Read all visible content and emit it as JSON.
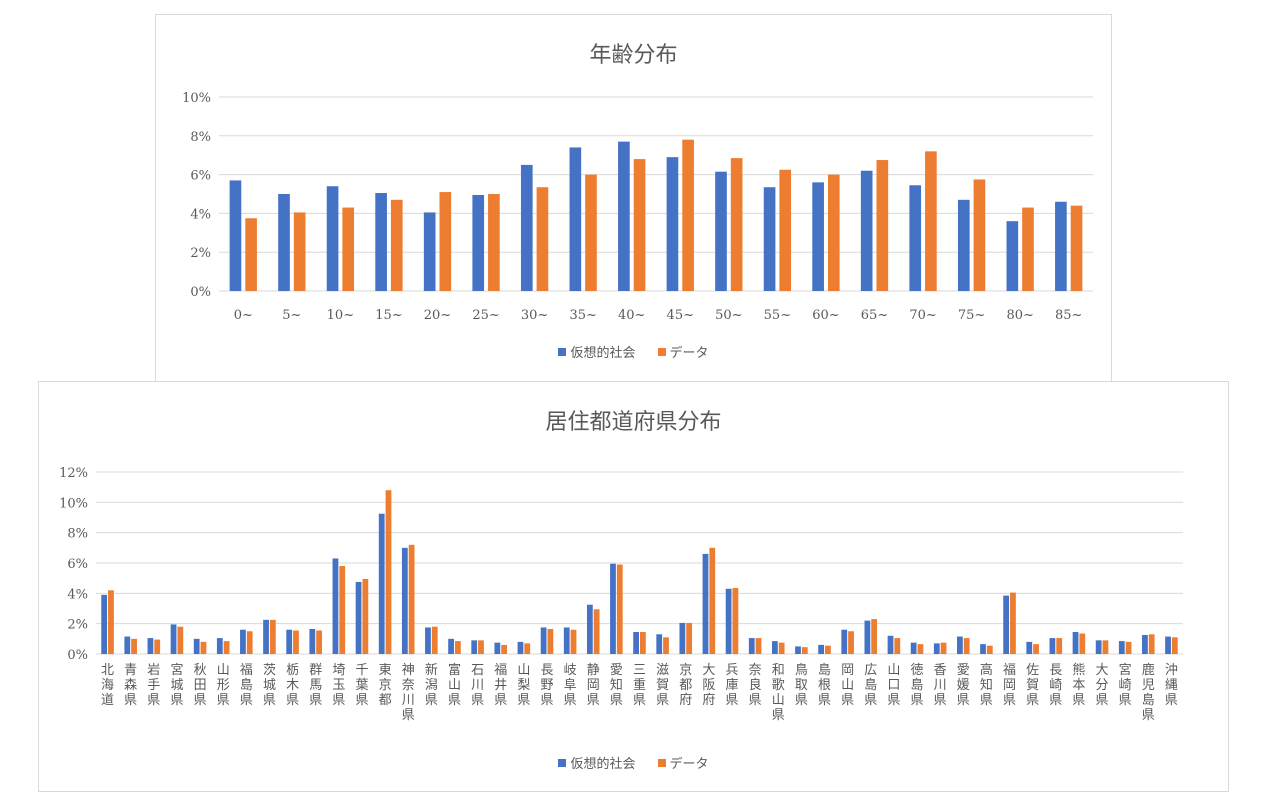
{
  "colors": {
    "series1": "#4472C4",
    "series2": "#ED7D31",
    "grid": "#d9d9d9",
    "text": "#595959"
  },
  "chart_data": [
    {
      "type": "bar",
      "title": "年齢分布",
      "categories": [
        "0~",
        "5~",
        "10~",
        "15~",
        "20~",
        "25~",
        "30~",
        "35~",
        "40~",
        "45~",
        "50~",
        "55~",
        "60~",
        "65~",
        "70~",
        "75~",
        "80~",
        "85~"
      ],
      "series": [
        {
          "name": "仮想的社会",
          "values": [
            5.7,
            5.0,
            5.4,
            5.05,
            4.05,
            4.95,
            6.5,
            7.4,
            7.7,
            6.9,
            6.15,
            5.35,
            5.6,
            6.2,
            5.45,
            4.7,
            3.6,
            4.6
          ]
        },
        {
          "name": "データ",
          "values": [
            3.75,
            4.05,
            4.3,
            4.7,
            5.1,
            5.0,
            5.35,
            6.0,
            6.8,
            7.8,
            6.85,
            6.25,
            6.0,
            6.75,
            7.2,
            5.75,
            4.3,
            4.4
          ]
        }
      ],
      "yticks": [
        "0%",
        "2%",
        "4%",
        "6%",
        "8%",
        "10%"
      ],
      "ylim": [
        0,
        10
      ],
      "grid": true,
      "legend": "bottom"
    },
    {
      "type": "bar",
      "title": "居住都道府県分布",
      "categories": [
        "北海道",
        "青森県",
        "岩手県",
        "宮城県",
        "秋田県",
        "山形県",
        "福島県",
        "茨城県",
        "栃木県",
        "群馬県",
        "埼玉県",
        "千葉県",
        "東京都",
        "神奈川県",
        "新潟県",
        "富山県",
        "石川県",
        "福井県",
        "山梨県",
        "長野県",
        "岐阜県",
        "静岡県",
        "愛知県",
        "三重県",
        "滋賀県",
        "京都府",
        "大阪府",
        "兵庫県",
        "奈良県",
        "和歌山県",
        "鳥取県",
        "島根県",
        "岡山県",
        "広島県",
        "山口県",
        "徳島県",
        "香川県",
        "愛媛県",
        "高知県",
        "福岡県",
        "佐賀県",
        "長崎県",
        "熊本県",
        "大分県",
        "宮崎県",
        "鹿児島県",
        "沖縄県"
      ],
      "series": [
        {
          "name": "仮想的社会",
          "values": [
            3.9,
            1.15,
            1.05,
            1.95,
            1.0,
            1.05,
            1.6,
            2.25,
            1.6,
            1.65,
            6.3,
            4.75,
            9.25,
            7.0,
            1.75,
            1.0,
            0.9,
            0.75,
            0.8,
            1.75,
            1.75,
            3.25,
            5.95,
            1.45,
            1.3,
            2.05,
            6.6,
            4.3,
            1.05,
            0.85,
            0.5,
            0.6,
            1.6,
            2.2,
            1.2,
            0.75,
            0.7,
            1.15,
            0.65,
            3.85,
            0.8,
            1.05,
            1.45,
            0.9,
            0.85,
            1.25,
            1.15
          ]
        },
        {
          "name": "データ",
          "values": [
            4.2,
            1.0,
            0.95,
            1.8,
            0.8,
            0.85,
            1.5,
            2.25,
            1.55,
            1.55,
            5.8,
            4.95,
            10.8,
            7.2,
            1.8,
            0.85,
            0.9,
            0.6,
            0.7,
            1.65,
            1.6,
            2.95,
            5.9,
            1.45,
            1.1,
            2.05,
            7.0,
            4.35,
            1.05,
            0.75,
            0.45,
            0.55,
            1.5,
            2.3,
            1.05,
            0.65,
            0.75,
            1.05,
            0.55,
            4.05,
            0.65,
            1.05,
            1.35,
            0.9,
            0.8,
            1.3,
            1.1
          ]
        }
      ],
      "yticks": [
        "0%",
        "2%",
        "4%",
        "6%",
        "8%",
        "10%",
        "12%"
      ],
      "ylim": [
        0,
        12
      ],
      "grid": true,
      "legend": "bottom"
    }
  ]
}
